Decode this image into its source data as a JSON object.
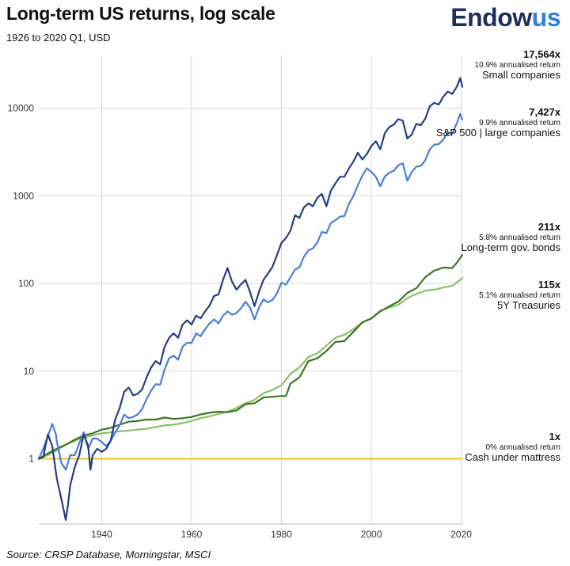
{
  "header": {
    "title": "Long-term US returns, log scale",
    "subtitle": "1926 to 2020 Q1, USD",
    "logo_part1": "Endow",
    "logo_part2": "us"
  },
  "footer": {
    "source": "Source: CRSP Database, Morningstar, MSCI"
  },
  "annotations": [
    {
      "multiple": "17,564x",
      "rate": "10.9% annualised return",
      "name": "Small companies"
    },
    {
      "multiple": "7,427x",
      "rate": "9.9% annualised return",
      "name": "S&P 500 | large companies"
    },
    {
      "multiple": "211x",
      "rate": "5.8% annualised return",
      "name": "Long-term gov. bonds"
    },
    {
      "multiple": "115x",
      "rate": "5.1% annualised return",
      "name": "5Y Treasuries"
    },
    {
      "multiple": "1x",
      "rate": "0% annualised return",
      "name": "Cash under mattress"
    }
  ],
  "chart_data": {
    "type": "line",
    "title": "Long-term US returns, log scale",
    "subtitle": "1926 to 2020 Q1, USD",
    "xlabel": "",
    "ylabel": "",
    "x_scale": "linear",
    "y_scale": "log",
    "xlim": [
      1926,
      2020.25
    ],
    "ylim": [
      0.18,
      40000
    ],
    "x_ticks": [
      1940,
      1960,
      1980,
      2000,
      2020
    ],
    "y_ticks": [
      1,
      10,
      100,
      1000,
      10000
    ],
    "y_tick_labels": [
      "1",
      "10",
      "100",
      "1000",
      "10000"
    ],
    "grid": true,
    "series": [
      {
        "name": "Small companies",
        "color": "#233f7f",
        "points": [
          [
            1926,
            1
          ],
          [
            1927,
            1.05
          ],
          [
            1928,
            1.9
          ],
          [
            1929,
            1.4
          ],
          [
            1930,
            0.6
          ],
          [
            1931,
            0.35
          ],
          [
            1932,
            0.2
          ],
          [
            1932.5,
            0.3
          ],
          [
            1933,
            0.5
          ],
          [
            1934,
            0.8
          ],
          [
            1935,
            1.1
          ],
          [
            1936,
            1.9
          ],
          [
            1937,
            1.4
          ],
          [
            1937.5,
            0.75
          ],
          [
            1938,
            1.1
          ],
          [
            1939,
            1.3
          ],
          [
            1940,
            1.2
          ],
          [
            1941,
            1.3
          ],
          [
            1942,
            1.6
          ],
          [
            1943,
            2.8
          ],
          [
            1944,
            3.8
          ],
          [
            1945,
            5.8
          ],
          [
            1946,
            6.5
          ],
          [
            1947,
            5.3
          ],
          [
            1948,
            5.5
          ],
          [
            1949,
            6.2
          ],
          [
            1950,
            8.5
          ],
          [
            1951,
            11
          ],
          [
            1952,
            13
          ],
          [
            1953,
            12
          ],
          [
            1954,
            19
          ],
          [
            1955,
            24
          ],
          [
            1956,
            27
          ],
          [
            1957,
            24
          ],
          [
            1958,
            34
          ],
          [
            1959,
            38
          ],
          [
            1960,
            34
          ],
          [
            1961,
            43
          ],
          [
            1962,
            40
          ],
          [
            1963,
            48
          ],
          [
            1964,
            56
          ],
          [
            1965,
            72
          ],
          [
            1966,
            75
          ],
          [
            1967,
            110
          ],
          [
            1968,
            150
          ],
          [
            1969,
            105
          ],
          [
            1970,
            85
          ],
          [
            1971,
            98
          ],
          [
            1972,
            110
          ],
          [
            1973,
            80
          ],
          [
            1974,
            55
          ],
          [
            1975,
            80
          ],
          [
            1976,
            110
          ],
          [
            1977,
            130
          ],
          [
            1978,
            155
          ],
          [
            1979,
            210
          ],
          [
            1980,
            290
          ],
          [
            1981,
            330
          ],
          [
            1982,
            400
          ],
          [
            1983,
            600
          ],
          [
            1984,
            560
          ],
          [
            1985,
            740
          ],
          [
            1986,
            820
          ],
          [
            1987,
            760
          ],
          [
            1988,
            950
          ],
          [
            1989,
            1050
          ],
          [
            1990,
            760
          ],
          [
            1991,
            1150
          ],
          [
            1992,
            1380
          ],
          [
            1993,
            1650
          ],
          [
            1994,
            1650
          ],
          [
            1995,
            2050
          ],
          [
            1996,
            2450
          ],
          [
            1997,
            3100
          ],
          [
            1998,
            2600
          ],
          [
            1999,
            3000
          ],
          [
            2000,
            3700
          ],
          [
            2001,
            4200
          ],
          [
            2002,
            3400
          ],
          [
            2003,
            5200
          ],
          [
            2004,
            6100
          ],
          [
            2005,
            6500
          ],
          [
            2006,
            7500
          ],
          [
            2007,
            7200
          ],
          [
            2008,
            4500
          ],
          [
            2009,
            5000
          ],
          [
            2010,
            6600
          ],
          [
            2011,
            6400
          ],
          [
            2012,
            7600
          ],
          [
            2013,
            10500
          ],
          [
            2014,
            11500
          ],
          [
            2015,
            11000
          ],
          [
            2016,
            13500
          ],
          [
            2017,
            15500
          ],
          [
            2018,
            14500
          ],
          [
            2019,
            17500
          ],
          [
            2019.8,
            22000
          ],
          [
            2020.25,
            17564
          ]
        ]
      },
      {
        "name": "S&P 500 | large companies",
        "color": "#4a7ed6",
        "points": [
          [
            1926,
            1
          ],
          [
            1927,
            1.3
          ],
          [
            1928,
            1.8
          ],
          [
            1929,
            2.5
          ],
          [
            1929.8,
            1.9
          ],
          [
            1930,
            1.6
          ],
          [
            1931,
            0.9
          ],
          [
            1932,
            0.75
          ],
          [
            1933,
            1.1
          ],
          [
            1934,
            1.1
          ],
          [
            1935,
            1.5
          ],
          [
            1936,
            2.0
          ],
          [
            1937,
            1.3
          ],
          [
            1938,
            1.7
          ],
          [
            1939,
            1.7
          ],
          [
            1940,
            1.55
          ],
          [
            1941,
            1.4
          ],
          [
            1942,
            1.6
          ],
          [
            1943,
            2.0
          ],
          [
            1944,
            2.4
          ],
          [
            1945,
            3.2
          ],
          [
            1946,
            2.9
          ],
          [
            1947,
            3.0
          ],
          [
            1948,
            3.2
          ],
          [
            1949,
            3.7
          ],
          [
            1950,
            4.8
          ],
          [
            1951,
            6.0
          ],
          [
            1952,
            7.1
          ],
          [
            1953,
            7.0
          ],
          [
            1954,
            10.5
          ],
          [
            1955,
            14
          ],
          [
            1956,
            15
          ],
          [
            1957,
            13.5
          ],
          [
            1958,
            19
          ],
          [
            1959,
            21
          ],
          [
            1960,
            21
          ],
          [
            1961,
            27
          ],
          [
            1962,
            25
          ],
          [
            1963,
            30
          ],
          [
            1964,
            35
          ],
          [
            1965,
            39
          ],
          [
            1966,
            35
          ],
          [
            1967,
            43
          ],
          [
            1968,
            48
          ],
          [
            1969,
            44
          ],
          [
            1970,
            46
          ],
          [
            1971,
            52
          ],
          [
            1972,
            62
          ],
          [
            1973,
            53
          ],
          [
            1974,
            39
          ],
          [
            1975,
            53
          ],
          [
            1976,
            66
          ],
          [
            1977,
            61
          ],
          [
            1978,
            65
          ],
          [
            1979,
            77
          ],
          [
            1980,
            102
          ],
          [
            1981,
            97
          ],
          [
            1982,
            118
          ],
          [
            1983,
            144
          ],
          [
            1984,
            153
          ],
          [
            1985,
            202
          ],
          [
            1986,
            239
          ],
          [
            1987,
            252
          ],
          [
            1988,
            294
          ],
          [
            1989,
            387
          ],
          [
            1990,
            375
          ],
          [
            1991,
            489
          ],
          [
            1992,
            526
          ],
          [
            1993,
            579
          ],
          [
            1994,
            587
          ],
          [
            1995,
            807
          ],
          [
            1996,
            992
          ],
          [
            1997,
            1320
          ],
          [
            1998,
            1700
          ],
          [
            1999,
            2060
          ],
          [
            2000,
            1870
          ],
          [
            2001,
            1650
          ],
          [
            2002,
            1290
          ],
          [
            2003,
            1660
          ],
          [
            2004,
            1840
          ],
          [
            2005,
            1930
          ],
          [
            2006,
            2230
          ],
          [
            2007,
            2350
          ],
          [
            2008,
            1480
          ],
          [
            2009,
            1870
          ],
          [
            2010,
            2150
          ],
          [
            2011,
            2200
          ],
          [
            2012,
            2550
          ],
          [
            2013,
            3380
          ],
          [
            2014,
            3840
          ],
          [
            2015,
            3890
          ],
          [
            2016,
            4360
          ],
          [
            2017,
            5310
          ],
          [
            2018,
            5080
          ],
          [
            2019,
            6680
          ],
          [
            2019.8,
            8600
          ],
          [
            2020.25,
            7427
          ]
        ]
      },
      {
        "name": "Long-term gov. bonds",
        "color": "#3f7327",
        "points": [
          [
            1926,
            1
          ],
          [
            1928,
            1.15
          ],
          [
            1930,
            1.3
          ],
          [
            1932,
            1.45
          ],
          [
            1934,
            1.65
          ],
          [
            1936,
            1.85
          ],
          [
            1938,
            1.95
          ],
          [
            1940,
            2.15
          ],
          [
            1942,
            2.25
          ],
          [
            1944,
            2.45
          ],
          [
            1946,
            2.65
          ],
          [
            1948,
            2.7
          ],
          [
            1950,
            2.8
          ],
          [
            1952,
            2.8
          ],
          [
            1954,
            2.95
          ],
          [
            1956,
            2.85
          ],
          [
            1958,
            2.9
          ],
          [
            1960,
            3.0
          ],
          [
            1962,
            3.2
          ],
          [
            1964,
            3.35
          ],
          [
            1966,
            3.45
          ],
          [
            1968,
            3.4
          ],
          [
            1970,
            3.55
          ],
          [
            1972,
            4.2
          ],
          [
            1974,
            4.3
          ],
          [
            1976,
            5.0
          ],
          [
            1978,
            5.1
          ],
          [
            1980,
            5.2
          ],
          [
            1981,
            5.2
          ],
          [
            1982,
            7.2
          ],
          [
            1984,
            8.5
          ],
          [
            1986,
            13
          ],
          [
            1988,
            14
          ],
          [
            1990,
            17
          ],
          [
            1992,
            21.5
          ],
          [
            1994,
            22
          ],
          [
            1996,
            28
          ],
          [
            1998,
            36
          ],
          [
            2000,
            40
          ],
          [
            2002,
            48
          ],
          [
            2004,
            55
          ],
          [
            2006,
            62
          ],
          [
            2008,
            78
          ],
          [
            2010,
            88
          ],
          [
            2012,
            118
          ],
          [
            2014,
            140
          ],
          [
            2016,
            152
          ],
          [
            2018,
            150
          ],
          [
            2019,
            172
          ],
          [
            2020.25,
            211
          ]
        ]
      },
      {
        "name": "5Y Treasuries",
        "color": "#8cbf6a",
        "points": [
          [
            1926,
            1
          ],
          [
            1928,
            1.1
          ],
          [
            1930,
            1.25
          ],
          [
            1932,
            1.45
          ],
          [
            1934,
            1.6
          ],
          [
            1936,
            1.75
          ],
          [
            1938,
            1.85
          ],
          [
            1940,
            1.95
          ],
          [
            1942,
            2.0
          ],
          [
            1944,
            2.05
          ],
          [
            1946,
            2.1
          ],
          [
            1948,
            2.15
          ],
          [
            1950,
            2.2
          ],
          [
            1952,
            2.3
          ],
          [
            1954,
            2.4
          ],
          [
            1956,
            2.45
          ],
          [
            1958,
            2.55
          ],
          [
            1960,
            2.7
          ],
          [
            1962,
            2.9
          ],
          [
            1964,
            3.05
          ],
          [
            1966,
            3.25
          ],
          [
            1968,
            3.45
          ],
          [
            1970,
            3.8
          ],
          [
            1972,
            4.3
          ],
          [
            1974,
            4.7
          ],
          [
            1976,
            5.6
          ],
          [
            1978,
            6.1
          ],
          [
            1980,
            6.9
          ],
          [
            1982,
            9.3
          ],
          [
            1984,
            11
          ],
          [
            1986,
            14.5
          ],
          [
            1988,
            16
          ],
          [
            1990,
            19.5
          ],
          [
            1992,
            24
          ],
          [
            1994,
            26
          ],
          [
            1996,
            30
          ],
          [
            1998,
            36
          ],
          [
            2000,
            40
          ],
          [
            2002,
            49
          ],
          [
            2004,
            53
          ],
          [
            2006,
            57
          ],
          [
            2008,
            68
          ],
          [
            2010,
            76
          ],
          [
            2012,
            83
          ],
          [
            2014,
            85
          ],
          [
            2016,
            90
          ],
          [
            2018,
            94
          ],
          [
            2020.25,
            115
          ]
        ]
      },
      {
        "name": "Cash under mattress",
        "color": "#f2c12e",
        "points": [
          [
            1926,
            1
          ],
          [
            2020.25,
            1
          ]
        ]
      }
    ]
  }
}
